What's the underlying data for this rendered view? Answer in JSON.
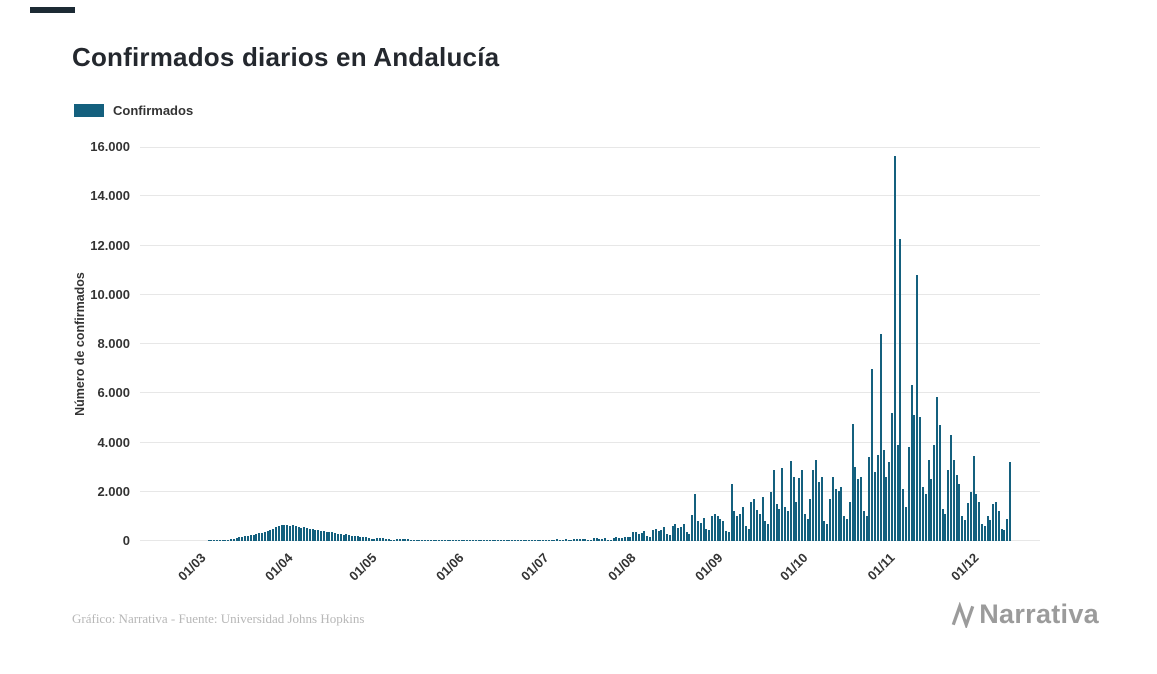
{
  "page": {
    "title": "Confirmados diarios en Andalucía",
    "legend": {
      "label": "Confirmados"
    },
    "footer": {
      "credit": "Gráfico: Narrativa - Fuente: Universidad Johns Hopkins",
      "brand": "Narrativa"
    }
  },
  "colors": {
    "bar": "#14607e",
    "grid": "#e7e7e7",
    "title_text": "#24282e",
    "axis_text": "#333333",
    "credit_text": "#b7b7b7",
    "brand_gray": "#9b9b9b"
  },
  "chart_data": {
    "type": "bar",
    "title": "Confirmados diarios en Andalucía",
    "xlabel": "",
    "ylabel": "Número de confirmados",
    "series_name": "Confirmados",
    "grid": "horizontal",
    "legend_position": "top-left",
    "ylim": [
      0,
      16000
    ],
    "ytick_step": 2000,
    "ytick_labels": [
      "0",
      "2.000",
      "4.000",
      "6.000",
      "8.000",
      "10.000",
      "12.000",
      "14.000",
      "16.000"
    ],
    "x_start_date": "2020-02-10",
    "x_end_date": "2020-12-15",
    "xtick_labels": [
      "01/03",
      "01/04",
      "01/05",
      "01/06",
      "01/07",
      "01/08",
      "01/09",
      "01/10",
      "01/11",
      "01/12"
    ],
    "xtick_indices": [
      20,
      51,
      81,
      112,
      142,
      173,
      204,
      234,
      265,
      295
    ],
    "values": [
      0,
      0,
      0,
      0,
      0,
      0,
      0,
      0,
      0,
      0,
      0,
      0,
      0,
      0,
      0,
      0,
      0,
      0,
      0,
      0,
      0,
      0,
      0,
      0,
      5,
      8,
      12,
      18,
      22,
      30,
      45,
      60,
      80,
      100,
      120,
      145,
      165,
      185,
      210,
      235,
      255,
      280,
      310,
      340,
      370,
      410,
      450,
      500,
      550,
      600,
      640,
      660,
      640,
      610,
      650,
      590,
      560,
      540,
      580,
      520,
      490,
      470,
      440,
      460,
      420,
      390,
      370,
      350,
      380,
      330,
      300,
      280,
      260,
      270,
      240,
      220,
      200,
      190,
      180,
      165,
      150,
      140,
      90,
      80,
      130,
      120,
      110,
      100,
      95,
      60,
      55,
      90,
      80,
      75,
      70,
      65,
      40,
      35,
      60,
      55,
      50,
      48,
      45,
      28,
      25,
      42,
      38,
      35,
      32,
      30,
      18,
      15,
      12,
      10,
      8,
      5,
      20,
      35,
      50,
      30,
      18,
      6,
      5,
      15,
      22,
      18,
      12,
      8,
      6,
      20,
      26,
      18,
      14,
      7,
      6,
      22,
      30,
      25,
      20,
      12,
      10,
      40,
      45,
      55,
      40,
      25,
      20,
      60,
      70,
      55,
      50,
      75,
      30,
      25,
      85,
      90,
      70,
      65,
      100,
      40,
      35,
      110,
      120,
      95,
      85,
      130,
      55,
      50,
      140,
      150,
      120,
      110,
      160,
      180,
      150,
      350,
      380,
      300,
      320,
      400,
      200,
      180,
      450,
      500,
      420,
      460,
      550,
      280,
      250,
      620,
      680,
      540,
      580,
      700,
      350,
      300,
      1050,
      1900,
      800,
      750,
      950,
      500,
      450,
      1000,
      1100,
      1000,
      900,
      800,
      400,
      350,
      2300,
      1200,
      1000,
      1100,
      1400,
      600,
      500,
      1600,
      1700,
      1250,
      1100,
      1800,
      800,
      700,
      2000,
      2900,
      1500,
      1300,
      2950,
      1400,
      1200,
      3250,
      2600,
      1600,
      2550,
      2900,
      1100,
      900,
      1700,
      2900,
      3300,
      2400,
      2600,
      800,
      700,
      1700,
      2600,
      2100,
      2050,
      2200,
      1000,
      900,
      1600,
      4750,
      3000,
      2500,
      2600,
      1200,
      1000,
      3400,
      7000,
      2800,
      3500,
      8400,
      3700,
      2600,
      3200,
      5200,
      15650,
      3900,
      12250,
      2100,
      1400,
      3800,
      6350,
      5100,
      10800,
      5050,
      2200,
      1900,
      3300,
      2500,
      3900,
      5850,
      4700,
      1300,
      1100,
      2900,
      4300,
      3300,
      2700,
      2300,
      1000,
      850,
      1550,
      2000,
      3450,
      1900,
      1600,
      700,
      600,
      1000,
      850,
      1500,
      1600,
      1200,
      500,
      450,
      900,
      3200
    ]
  }
}
